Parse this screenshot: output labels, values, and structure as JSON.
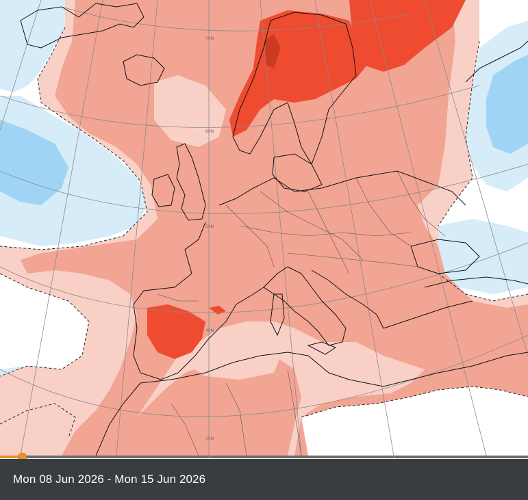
{
  "map": {
    "latitude_labels": [
      "70N",
      "60N",
      "50N",
      "40N",
      "30N"
    ],
    "colors": {
      "anomaly_strong_positive": "#ee4b30",
      "anomaly_positive": "#f2a593",
      "anomaly_weak_positive": "#f9d0c6",
      "anomaly_neutral": "#ffffff",
      "anomaly_weak_negative": "#d6ecf8",
      "anomaly_negative": "#9fd4f5",
      "coastline": "#111111",
      "graticule": "#8a8a8a"
    }
  },
  "timeline": {
    "progress_fraction": 0.042
  },
  "caption": {
    "date_range": "Mon 08 Jun 2026 - Mon 15 Jun 2026"
  }
}
